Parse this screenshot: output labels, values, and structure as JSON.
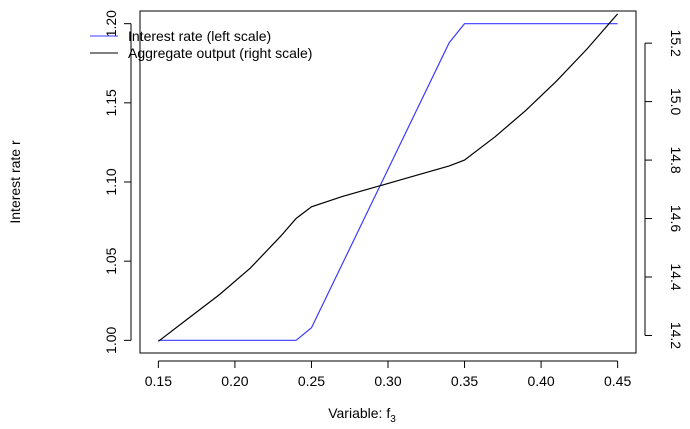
{
  "chart_data": {
    "type": "line",
    "xlabel": "Variable: f",
    "xlabel_subscript": "3",
    "ylabel_left": "Interest rate r",
    "xlim": [
      0.15,
      0.45
    ],
    "ylim_left": [
      1.0,
      1.2
    ],
    "ylim_right": [
      14.2,
      15.25
    ],
    "x_ticks": [
      0.15,
      0.2,
      0.25,
      0.3,
      0.35,
      0.4,
      0.45
    ],
    "x_tick_labels": [
      "0.15",
      "0.20",
      "0.25",
      "0.30",
      "0.35",
      "0.40",
      "0.45"
    ],
    "y_left_ticks": [
      1.0,
      1.05,
      1.1,
      1.15,
      1.2
    ],
    "y_left_tick_labels": [
      "1.00",
      "1.05",
      "1.10",
      "1.15",
      "1.20"
    ],
    "y_right_ticks": [
      14.2,
      14.4,
      14.6,
      14.8,
      15.0,
      15.2
    ],
    "y_right_tick_labels": [
      "14.2",
      "14.4",
      "14.6",
      "14.8",
      "15.0",
      "15.2"
    ],
    "legend_position": "top-left",
    "series": [
      {
        "name": "Interest rate (left scale)",
        "axis": "left",
        "color": "#3b3bff",
        "x": [
          0.15,
          0.24,
          0.25,
          0.34,
          0.35,
          0.45
        ],
        "y": [
          1.0,
          1.0,
          1.008,
          1.188,
          1.2,
          1.2
        ]
      },
      {
        "name": "Aggregate output (right scale)",
        "axis": "right",
        "color": "#000000",
        "x": [
          0.15,
          0.17,
          0.19,
          0.21,
          0.23,
          0.24,
          0.25,
          0.27,
          0.29,
          0.31,
          0.33,
          0.34,
          0.35,
          0.37,
          0.39,
          0.41,
          0.43,
          0.45
        ],
        "y": [
          14.18,
          14.26,
          14.34,
          14.43,
          14.54,
          14.6,
          14.64,
          14.675,
          14.705,
          14.735,
          14.765,
          14.78,
          14.8,
          14.88,
          14.97,
          15.07,
          15.18,
          15.3
        ]
      }
    ]
  }
}
